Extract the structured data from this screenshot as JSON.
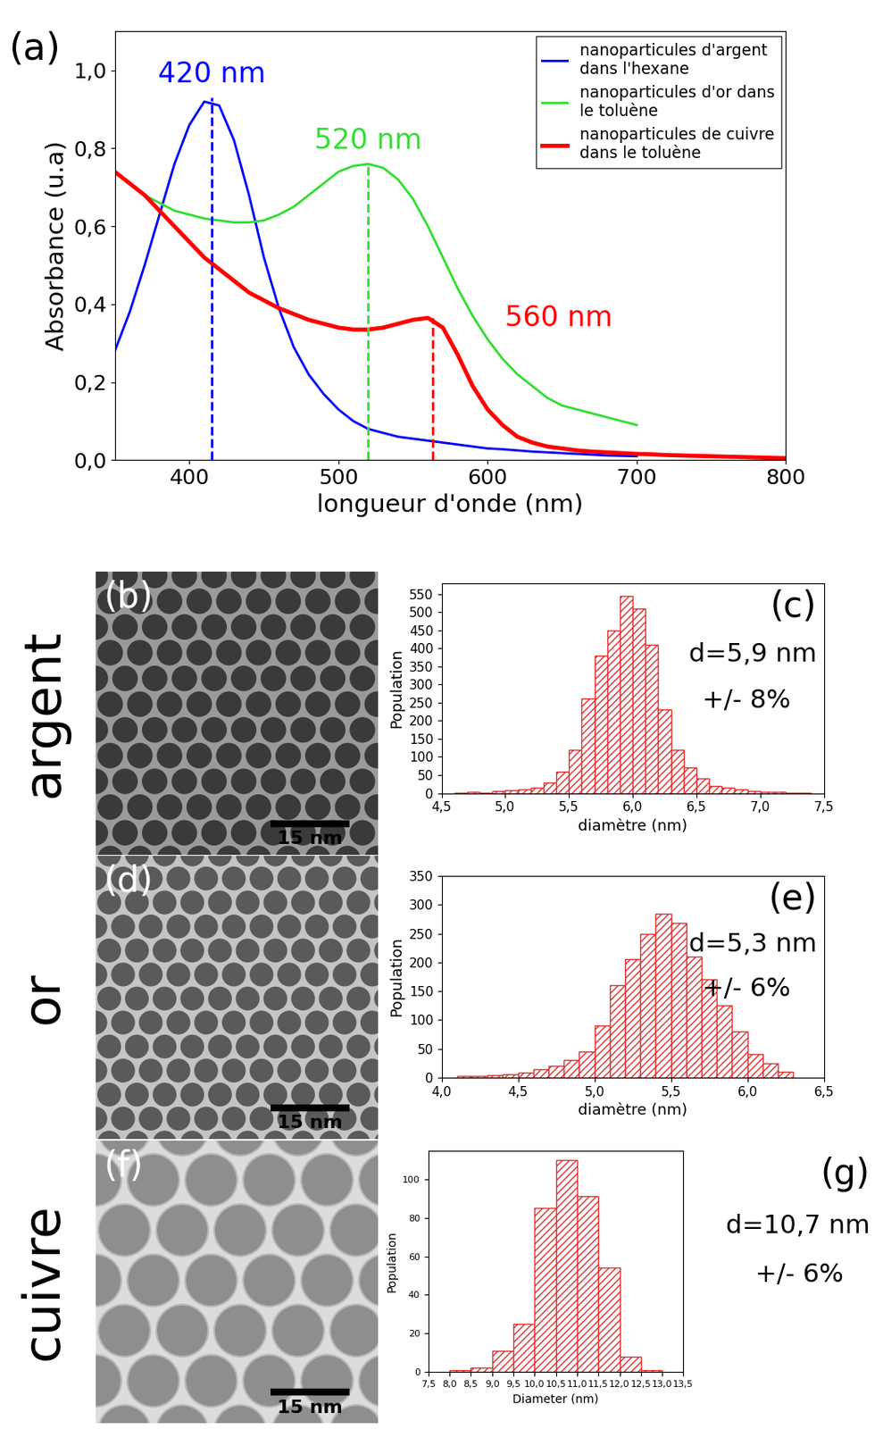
{
  "chart_data": [
    {
      "type": "line",
      "title": "(a)",
      "x_label": "longueur d'onde (nm)",
      "y_label": "Absorbance (u.a)",
      "x": [
        350,
        360,
        370,
        380,
        390,
        400,
        410,
        420,
        430,
        440,
        450,
        460,
        470,
        480,
        490,
        500,
        510,
        520,
        530,
        540,
        550,
        560,
        570,
        580,
        590,
        600,
        610,
        620,
        630,
        640,
        650,
        660,
        670,
        680,
        690,
        700,
        710,
        720,
        730,
        740,
        750,
        760,
        770,
        780,
        790,
        800
      ],
      "series": [
        {
          "name": "nanoparticules d'argent dans l'hexane",
          "color": "#0000ff",
          "values": [
            0.28,
            0.38,
            0.5,
            0.63,
            0.76,
            0.86,
            0.92,
            0.91,
            0.82,
            0.68,
            0.52,
            0.39,
            0.29,
            0.22,
            0.17,
            0.13,
            0.1,
            0.08,
            0.07,
            0.06,
            0.055,
            0.05,
            0.045,
            0.04,
            0.035,
            0.03,
            0.028,
            0.025,
            0.022,
            0.02,
            0.018,
            0.016,
            0.014,
            0.012,
            0.011,
            0.01,
            null,
            null,
            null,
            null,
            null,
            null,
            null,
            null,
            null,
            null
          ]
        },
        {
          "name": "nanoparticules d'or dans le toluène",
          "color": "#33dd33",
          "values": [
            0.74,
            0.71,
            0.68,
            0.66,
            0.64,
            0.63,
            0.62,
            0.615,
            0.61,
            0.61,
            0.615,
            0.63,
            0.65,
            0.68,
            0.71,
            0.74,
            0.755,
            0.76,
            0.75,
            0.72,
            0.67,
            0.6,
            0.52,
            0.44,
            0.37,
            0.31,
            0.26,
            0.22,
            0.19,
            0.16,
            0.14,
            0.13,
            0.12,
            0.11,
            0.1,
            0.09,
            null,
            null,
            null,
            null,
            null,
            null,
            null,
            null,
            null,
            null
          ]
        },
        {
          "name": "nanoparticules de cuivre dans le toluène",
          "color": "#ff0000",
          "values": [
            0.74,
            0.71,
            0.68,
            0.64,
            0.6,
            0.56,
            0.52,
            0.49,
            0.46,
            0.43,
            0.41,
            0.39,
            0.375,
            0.36,
            0.35,
            0.34,
            0.335,
            0.335,
            0.34,
            0.35,
            0.36,
            0.365,
            0.34,
            0.27,
            0.19,
            0.13,
            0.09,
            0.06,
            0.045,
            0.035,
            0.03,
            0.025,
            0.022,
            0.02,
            0.018,
            0.016,
            0.015,
            0.013,
            0.012,
            0.011,
            0.01,
            0.009,
            0.008,
            0.007,
            0.006,
            0.005
          ]
        }
      ],
      "annotations": [
        {
          "text": "420 nm",
          "x": 415,
          "y": 0.93,
          "color": "#0000ff"
        },
        {
          "text": "520 nm",
          "x": 520,
          "y": 0.76,
          "color": "#33dd33"
        },
        {
          "text": "560 nm",
          "x": 563,
          "y": 0.365,
          "color": "#ff0000"
        }
      ],
      "xlim": [
        350,
        800
      ],
      "xticks": [
        400,
        500,
        600,
        700,
        800
      ],
      "ylim": [
        0,
        1.1
      ],
      "yticks": [
        {
          "value": 0.0,
          "label": "0,0"
        },
        {
          "value": 0.2,
          "label": "0,2"
        },
        {
          "value": 0.4,
          "label": "0,4"
        },
        {
          "value": 0.6,
          "label": "0,6"
        },
        {
          "value": 0.8,
          "label": "0,8"
        },
        {
          "value": 1.0,
          "label": "1,0"
        }
      ],
      "legend": "upper right",
      "grid": false
    },
    {
      "type": "histogram",
      "title": "(c)",
      "x_label": "diamètre (nm)",
      "y_label": "Population",
      "annotations": [
        "d=5,9 nm",
        "+/- 8%"
      ],
      "color": "#e03030",
      "bins": [
        4.6,
        4.7,
        4.8,
        4.9,
        5.0,
        5.1,
        5.2,
        5.3,
        5.4,
        5.5,
        5.6,
        5.7,
        5.8,
        5.9,
        6.0,
        6.1,
        6.2,
        6.3,
        6.4,
        6.5,
        6.6,
        6.7,
        6.8,
        6.9,
        7.0,
        7.1,
        7.2,
        7.3,
        7.4
      ],
      "values": [
        2,
        3,
        2,
        5,
        8,
        10,
        15,
        30,
        60,
        120,
        260,
        380,
        450,
        545,
        510,
        410,
        230,
        120,
        70,
        40,
        20,
        15,
        10,
        6,
        4,
        3,
        2,
        1
      ],
      "xlim": [
        4.5,
        7.5
      ],
      "xticks": [
        {
          "value": 4.5,
          "label": "4,5"
        },
        {
          "value": 5.0,
          "label": "5,0"
        },
        {
          "value": 5.5,
          "label": "5,5"
        },
        {
          "value": 6.0,
          "label": "6,0"
        },
        {
          "value": 6.5,
          "label": "6,5"
        },
        {
          "value": 7.0,
          "label": "7,0"
        },
        {
          "value": 7.5,
          "label": "7,5"
        }
      ],
      "ylim": [
        0,
        580
      ],
      "yticks": [
        0,
        50,
        100,
        150,
        200,
        250,
        300,
        350,
        400,
        450,
        500,
        550
      ]
    },
    {
      "type": "histogram",
      "title": "(e)",
      "x_label": "diamètre (nm)",
      "y_label": "Population",
      "annotations": [
        "d=5,3 nm",
        "+/- 6%"
      ],
      "color": "#e03030",
      "bins": [
        4.1,
        4.2,
        4.3,
        4.4,
        4.5,
        4.6,
        4.7,
        4.8,
        4.9,
        5.0,
        5.1,
        5.2,
        5.3,
        5.4,
        5.5,
        5.6,
        5.7,
        5.8,
        5.9,
        6.0,
        6.1,
        6.2,
        6.3
      ],
      "values": [
        2,
        3,
        4,
        5,
        8,
        15,
        20,
        30,
        45,
        90,
        160,
        205,
        250,
        285,
        268,
        210,
        170,
        125,
        80,
        40,
        25,
        10
      ],
      "xlim": [
        4.0,
        6.5
      ],
      "xticks": [
        {
          "value": 4.0,
          "label": "4,0"
        },
        {
          "value": 4.5,
          "label": "4,5"
        },
        {
          "value": 5.0,
          "label": "5,0"
        },
        {
          "value": 5.5,
          "label": "5,5"
        },
        {
          "value": 6.0,
          "label": "6,0"
        },
        {
          "value": 6.5,
          "label": "6,5"
        }
      ],
      "ylim": [
        0,
        350
      ],
      "yticks": [
        0,
        50,
        100,
        150,
        200,
        250,
        300,
        350
      ]
    },
    {
      "type": "histogram",
      "title": "(g)",
      "x_label": "Diameter (nm)",
      "y_label": "Population",
      "annotations": [
        "d=10,7 nm",
        "+/- 6%"
      ],
      "color": "#e03030",
      "bins": [
        8.0,
        8.5,
        9.0,
        9.5,
        10.0,
        10.5,
        11.0,
        11.5,
        12.0,
        12.5,
        13.0
      ],
      "values": [
        1,
        2,
        11,
        25,
        85,
        110,
        91,
        54,
        8,
        1
      ],
      "xlim": [
        7.5,
        13.5
      ],
      "xticks": [
        {
          "value": 7.5,
          "label": "7,5"
        },
        {
          "value": 8.0,
          "label": "8,0"
        },
        {
          "value": 8.5,
          "label": "8,5"
        },
        {
          "value": 9.0,
          "label": "9,0"
        },
        {
          "value": 9.5,
          "label": "9,5"
        },
        {
          "value": 10.0,
          "label": "10,0"
        },
        {
          "value": 10.5,
          "label": "10,5"
        },
        {
          "value": 11.0,
          "label": "11,0"
        },
        {
          "value": 11.5,
          "label": "11,5"
        },
        {
          "value": 12.0,
          "label": "12,0"
        },
        {
          "value": 12.5,
          "label": "12,5"
        },
        {
          "value": 13.0,
          "label": "13,0"
        },
        {
          "value": 13.5,
          "label": "13,5"
        }
      ],
      "ylim": [
        0,
        115
      ],
      "yticks": [
        0,
        20,
        40,
        60,
        80,
        100
      ]
    }
  ],
  "images": [
    {
      "label": "(b)",
      "row_label": "argent",
      "scale_bar": "15 nm"
    },
    {
      "label": "(d)",
      "row_label": "or",
      "scale_bar": "15 nm"
    },
    {
      "label": "(f)",
      "row_label": "cuivre",
      "scale_bar": "15 nm"
    }
  ]
}
